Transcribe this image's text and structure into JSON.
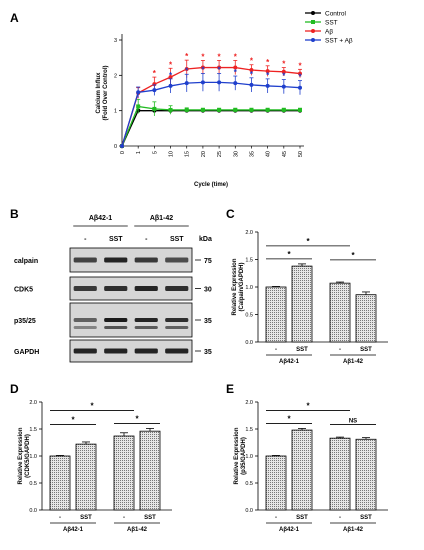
{
  "chart_data": [
    {
      "panel": "A",
      "type": "line",
      "xlabel": "Cycle (time)",
      "ylabel": [
        "Calcium Influx",
        "(Fold Over Control)"
      ],
      "x": [
        0,
        1,
        5,
        10,
        15,
        20,
        25,
        30,
        35,
        40,
        45,
        50
      ],
      "ylim": [
        0,
        3
      ],
      "yticks": [
        0,
        1,
        2,
        3
      ],
      "legend_position": "top-right",
      "series": [
        {
          "name": "Control",
          "color": "#000000",
          "values": [
            0,
            1.0,
            1.0,
            1.0,
            1.0,
            1.0,
            1.0,
            1.0,
            1.0,
            1.0,
            1.0,
            1.0
          ],
          "err": [
            0,
            0.03,
            0.03,
            0.03,
            0.03,
            0.03,
            0.03,
            0.03,
            0.03,
            0.03,
            0.03,
            0.03
          ]
        },
        {
          "name": "SST",
          "color": "#22bb22",
          "values": [
            0,
            1.12,
            1.05,
            1.02,
            1.02,
            1.02,
            1.02,
            1.02,
            1.02,
            1.02,
            1.02,
            1.02
          ],
          "err": [
            0,
            0.2,
            0.2,
            0.12,
            0.06,
            0.05,
            0.05,
            0.05,
            0.05,
            0.05,
            0.05,
            0.05
          ]
        },
        {
          "name": "Aβ",
          "color": "#ee2222",
          "values": [
            0,
            1.5,
            1.75,
            1.95,
            2.18,
            2.22,
            2.22,
            2.22,
            2.15,
            2.12,
            2.1,
            2.05
          ],
          "err": [
            0,
            0.15,
            0.2,
            0.25,
            0.25,
            0.2,
            0.2,
            0.2,
            0.15,
            0.15,
            0.12,
            0.12
          ]
        },
        {
          "name": "SST + Aβ",
          "color": "#1f3fcc",
          "values": [
            0,
            1.52,
            1.58,
            1.7,
            1.78,
            1.8,
            1.8,
            1.78,
            1.73,
            1.7,
            1.68,
            1.65
          ],
          "err": [
            0,
            0.15,
            0.15,
            0.2,
            0.25,
            0.25,
            0.25,
            0.2,
            0.2,
            0.2,
            0.2,
            0.2
          ]
        }
      ],
      "annotations": {
        "red_stars_x": [
          5,
          10,
          15,
          20,
          25,
          30,
          35,
          40,
          45,
          50
        ],
        "blue_stars_x": [
          10,
          15,
          20,
          25,
          30,
          35,
          40,
          45,
          50
        ],
        "symbol": "*"
      }
    },
    {
      "panel": "C",
      "type": "bar",
      "ylabel": [
        "Relative Expression",
        "(Calpain/GAPDH)"
      ],
      "ylim": [
        0,
        2
      ],
      "yticks": [
        "0.0",
        "0.5",
        "1.0",
        "1.5",
        "2.0"
      ],
      "categories": [
        "-",
        "SST",
        "-",
        "SST"
      ],
      "groups": [
        "Aβ42-1",
        "Aβ1-42"
      ],
      "values": [
        1.0,
        1.38,
        1.07,
        0.86
      ],
      "err": [
        0.01,
        0.04,
        0.02,
        0.05
      ],
      "significance": [
        {
          "from": 0,
          "to": 1,
          "label": "*"
        },
        {
          "from": 0,
          "to": 2,
          "label": "*"
        },
        {
          "from": 2,
          "to": 3,
          "label": "*"
        }
      ]
    },
    {
      "panel": "D",
      "type": "bar",
      "ylabel": [
        "Relative Expression",
        "(CDK5/GAPDH)"
      ],
      "ylim": [
        0,
        2
      ],
      "yticks": [
        "0.0",
        "0.5",
        "1.0",
        "1.5",
        "2.0"
      ],
      "categories": [
        "-",
        "SST",
        "-",
        "SST"
      ],
      "groups": [
        "Aβ42-1",
        "Aβ1-42"
      ],
      "values": [
        1.0,
        1.22,
        1.37,
        1.46
      ],
      "err": [
        0.01,
        0.04,
        0.06,
        0.05
      ],
      "significance": [
        {
          "from": 0,
          "to": 1,
          "label": "*"
        },
        {
          "from": 0,
          "to": 2,
          "label": "*"
        },
        {
          "from": 2,
          "to": 3,
          "label": "*"
        }
      ]
    },
    {
      "panel": "E",
      "type": "bar",
      "ylabel": [
        "Relative Expression",
        "(p35/GAPDH)"
      ],
      "ylim": [
        0,
        2
      ],
      "yticks": [
        "0.0",
        "0.5",
        "1.0",
        "1.5",
        "2.0"
      ],
      "categories": [
        "-",
        "SST",
        "-",
        "SST"
      ],
      "groups": [
        "Aβ42-1",
        "Aβ1-42"
      ],
      "values": [
        1.0,
        1.48,
        1.33,
        1.31
      ],
      "err": [
        0.01,
        0.03,
        0.02,
        0.03
      ],
      "significance": [
        {
          "from": 0,
          "to": 1,
          "label": "*"
        },
        {
          "from": 0,
          "to": 2,
          "label": "*"
        },
        {
          "from": 2,
          "to": 3,
          "label": "NS"
        }
      ]
    }
  ],
  "blot": {
    "panel": "B",
    "groups": [
      "Aβ42-1",
      "Aβ1-42"
    ],
    "lanes": [
      "-",
      "SST",
      "-",
      "SST"
    ],
    "kda_label": "kDa",
    "rows": [
      {
        "name": "calpain",
        "kda": "75"
      },
      {
        "name": "CDK5",
        "kda": "30"
      },
      {
        "name": "p35/25",
        "kda": "35"
      },
      {
        "name": "GAPDH",
        "kda": "35"
      }
    ]
  }
}
